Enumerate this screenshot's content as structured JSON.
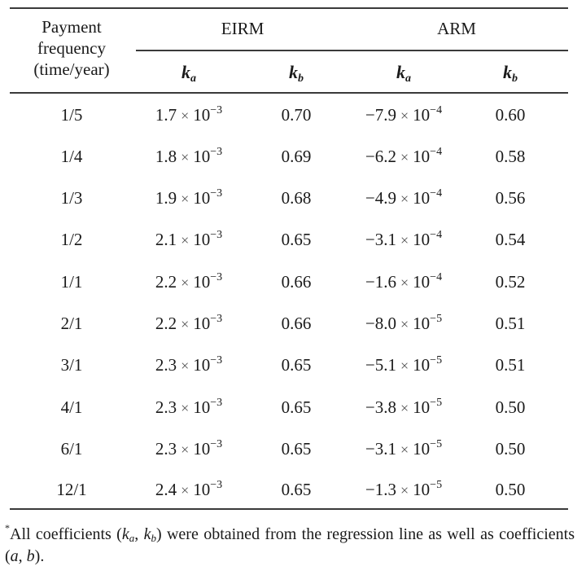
{
  "table": {
    "header": {
      "frequency_label_lines": [
        "Payment",
        "frequency",
        "(time/year)"
      ],
      "groups": [
        {
          "label": "EIRM",
          "columns": [
            {
              "symbol": "k",
              "subscript": "a"
            },
            {
              "symbol": "k",
              "subscript": "b"
            }
          ]
        },
        {
          "label": "ARM",
          "columns": [
            {
              "symbol": "k",
              "subscript": "a"
            },
            {
              "symbol": "k",
              "subscript": "b"
            }
          ]
        }
      ]
    },
    "rows": [
      {
        "frequency": "1/5",
        "eirm_ka": {
          "mantissa": "1.7",
          "exponent": "−3"
        },
        "eirm_kb": "0.70",
        "arm_ka": {
          "mantissa": "−7.9",
          "exponent": "−4"
        },
        "arm_kb": "0.60"
      },
      {
        "frequency": "1/4",
        "eirm_ka": {
          "mantissa": "1.8",
          "exponent": "−3"
        },
        "eirm_kb": "0.69",
        "arm_ka": {
          "mantissa": "−6.2",
          "exponent": "−4"
        },
        "arm_kb": "0.58"
      },
      {
        "frequency": "1/3",
        "eirm_ka": {
          "mantissa": "1.9",
          "exponent": "−3"
        },
        "eirm_kb": "0.68",
        "arm_ka": {
          "mantissa": "−4.9",
          "exponent": "−4"
        },
        "arm_kb": "0.56"
      },
      {
        "frequency": "1/2",
        "eirm_ka": {
          "mantissa": "2.1",
          "exponent": "−3"
        },
        "eirm_kb": "0.65",
        "arm_ka": {
          "mantissa": "−3.1",
          "exponent": "−4"
        },
        "arm_kb": "0.54"
      },
      {
        "frequency": "1/1",
        "eirm_ka": {
          "mantissa": "2.2",
          "exponent": "−3"
        },
        "eirm_kb": "0.66",
        "arm_ka": {
          "mantissa": "−1.6",
          "exponent": "−4"
        },
        "arm_kb": "0.52"
      },
      {
        "frequency": "2/1",
        "eirm_ka": {
          "mantissa": "2.2",
          "exponent": "−3"
        },
        "eirm_kb": "0.66",
        "arm_ka": {
          "mantissa": "−8.0",
          "exponent": "−5"
        },
        "arm_kb": "0.51"
      },
      {
        "frequency": "3/1",
        "eirm_ka": {
          "mantissa": "2.3",
          "exponent": "−3"
        },
        "eirm_kb": "0.65",
        "arm_ka": {
          "mantissa": "−5.1",
          "exponent": "−5"
        },
        "arm_kb": "0.51"
      },
      {
        "frequency": "4/1",
        "eirm_ka": {
          "mantissa": "2.3",
          "exponent": "−3"
        },
        "eirm_kb": "0.65",
        "arm_ka": {
          "mantissa": "−3.8",
          "exponent": "−5"
        },
        "arm_kb": "0.50"
      },
      {
        "frequency": "6/1",
        "eirm_ka": {
          "mantissa": "2.3",
          "exponent": "−3"
        },
        "eirm_kb": "0.65",
        "arm_ka": {
          "mantissa": "−3.1",
          "exponent": "−5"
        },
        "arm_kb": "0.50"
      },
      {
        "frequency": "12/1",
        "eirm_ka": {
          "mantissa": "2.4",
          "exponent": "−3"
        },
        "eirm_kb": "0.65",
        "arm_ka": {
          "mantissa": "−1.3",
          "exponent": "−5"
        },
        "arm_kb": "0.50"
      }
    ],
    "times_symbol": "×",
    "base": "10"
  },
  "footnote": {
    "marker": "*",
    "text_before": "All coefficients (",
    "ka_symbol": "k",
    "ka_sub": "a",
    "separator": ", ",
    "kb_symbol": "k",
    "kb_sub": "b",
    "text_middle": ") were obtained from the regression line as well as coefficients (",
    "a_symbol": "a",
    "comma": ", ",
    "b_symbol": "b",
    "text_end": ")."
  }
}
